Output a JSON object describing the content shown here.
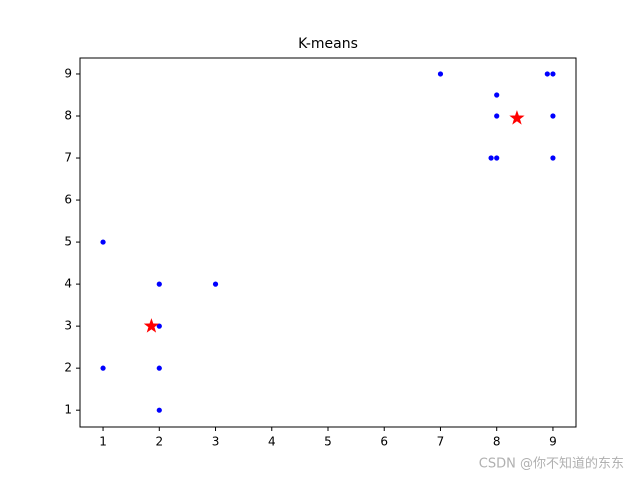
{
  "chart_data": {
    "type": "scatter",
    "title": "K-means",
    "series": [
      {
        "color": "#0000ff",
        "marker": "dot",
        "x": [
          1,
          1,
          2,
          2,
          2,
          2,
          3,
          7,
          8,
          8,
          7.9,
          8,
          8.9,
          9,
          9,
          9
        ],
        "y": [
          5,
          2,
          4,
          3,
          2,
          1,
          4,
          9,
          8.5,
          8,
          7,
          7,
          9,
          9,
          8,
          7
        ]
      },
      {
        "color": "#ff0000",
        "marker": "star",
        "x": [
          1.86,
          8.36
        ],
        "y": [
          3,
          7.95
        ]
      }
    ],
    "xlim": [
      0.59,
      9.41
    ],
    "ylim": [
      0.6,
      9.38
    ],
    "xticks": [
      1,
      2,
      3,
      4,
      5,
      6,
      7,
      8,
      9
    ],
    "yticks": [
      1,
      2,
      3,
      4,
      5,
      6,
      7,
      8,
      9
    ]
  },
  "watermark": "CSDN @你不知道的东东"
}
